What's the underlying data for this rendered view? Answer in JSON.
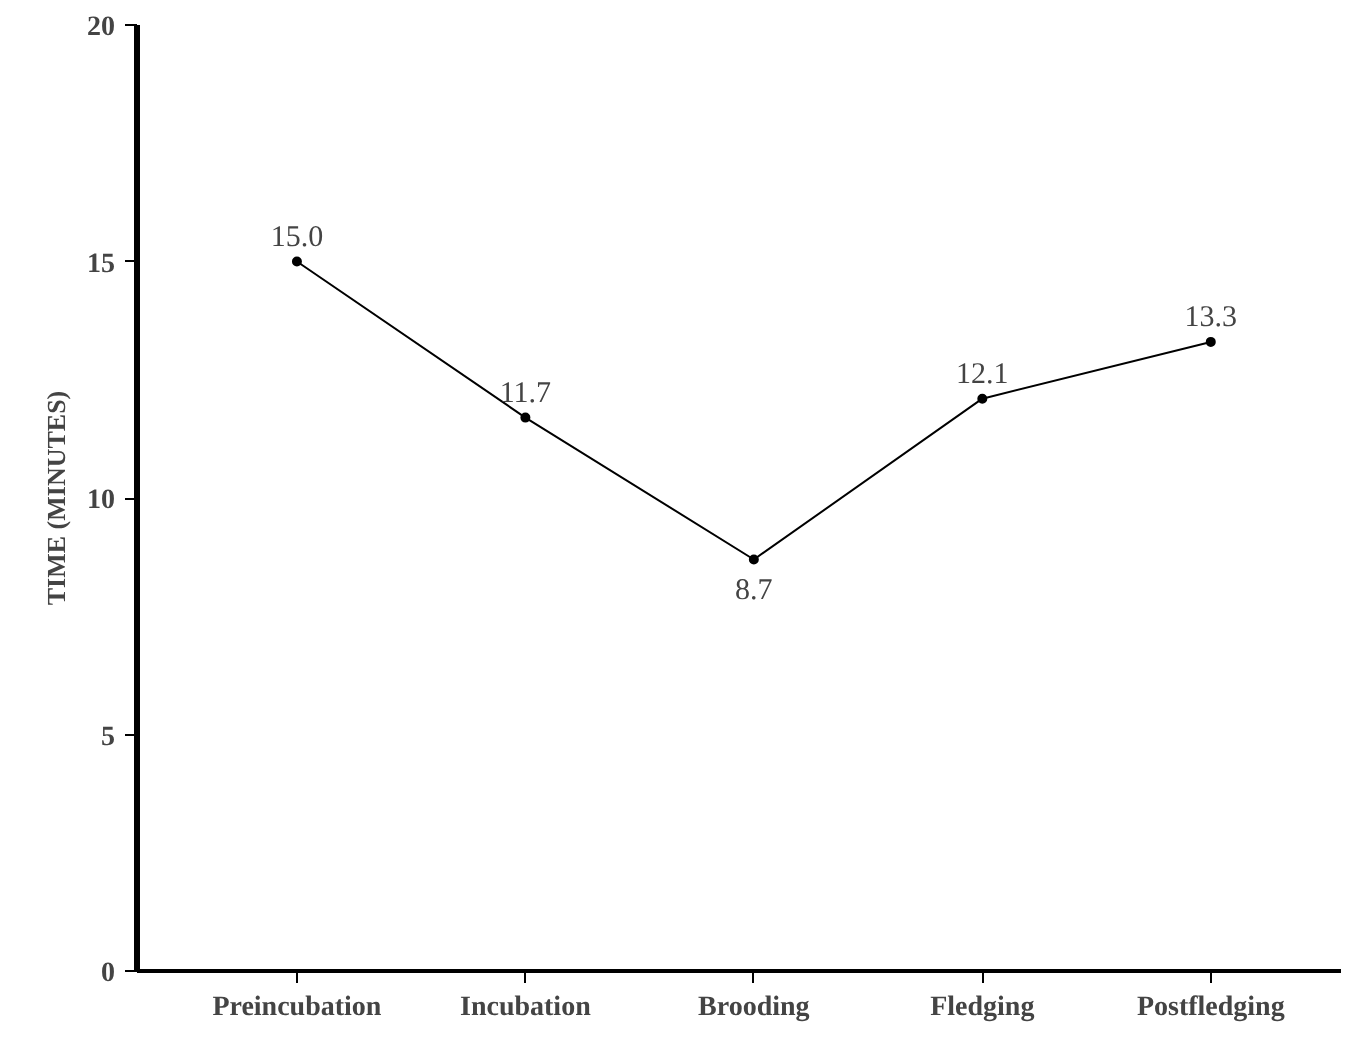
{
  "chart_data": {
    "type": "line",
    "ylabel": "TIME (MINUTES)",
    "categories": [
      "Preincubation",
      "Incubation",
      "Brooding",
      "Fledging",
      "Postfledging"
    ],
    "values": [
      15.0,
      11.7,
      8.7,
      12.1,
      13.3
    ],
    "value_labels": [
      "15.0",
      "11.7",
      "8.7",
      "12.1",
      "13.3"
    ],
    "color": "#000000",
    "ylim": [
      0,
      20
    ],
    "yticks": [
      0,
      5,
      10,
      15,
      20
    ],
    "grid": false,
    "marker": "circle",
    "line_style": "solid"
  }
}
